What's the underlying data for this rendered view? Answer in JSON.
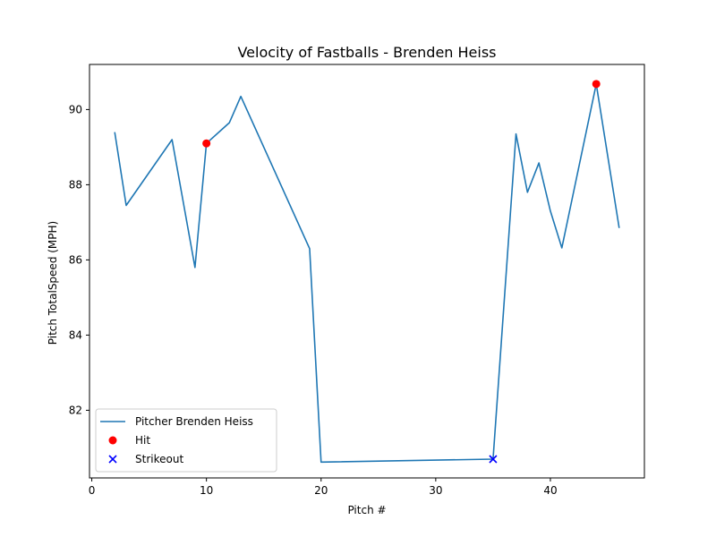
{
  "chart_data": {
    "type": "line",
    "title": "Velocity of Fastballs - Brenden Heiss",
    "xlabel": "Pitch #",
    "ylabel": "Pitch TotalSpeed (MPH)",
    "xlim": [
      -0.2,
      48.2
    ],
    "ylim": [
      80.2,
      91.2
    ],
    "xticks": [
      0,
      10,
      20,
      30,
      40
    ],
    "yticks": [
      82,
      84,
      86,
      88,
      90
    ],
    "grid": false,
    "legend_position": "lower-left",
    "series": [
      {
        "name": "Pitcher Brenden Heiss",
        "kind": "line",
        "color": "#1f77b4",
        "x": [
          2,
          3,
          7,
          9,
          10,
          12,
          13,
          19,
          20,
          35,
          37,
          38,
          39,
          40,
          41,
          44,
          46
        ],
        "y": [
          89.4,
          87.45,
          89.2,
          85.8,
          89.1,
          89.65,
          90.35,
          86.3,
          80.62,
          80.7,
          89.35,
          87.8,
          88.58,
          87.3,
          86.32,
          90.68,
          86.85
        ]
      },
      {
        "name": "Hit",
        "kind": "scatter",
        "marker": "circle",
        "color": "#ff0000",
        "x": [
          10,
          44
        ],
        "y": [
          89.1,
          90.68
        ]
      },
      {
        "name": "Strikeout",
        "kind": "scatter",
        "marker": "x",
        "color": "#0000ff",
        "x": [
          35
        ],
        "y": [
          80.7
        ]
      }
    ]
  }
}
